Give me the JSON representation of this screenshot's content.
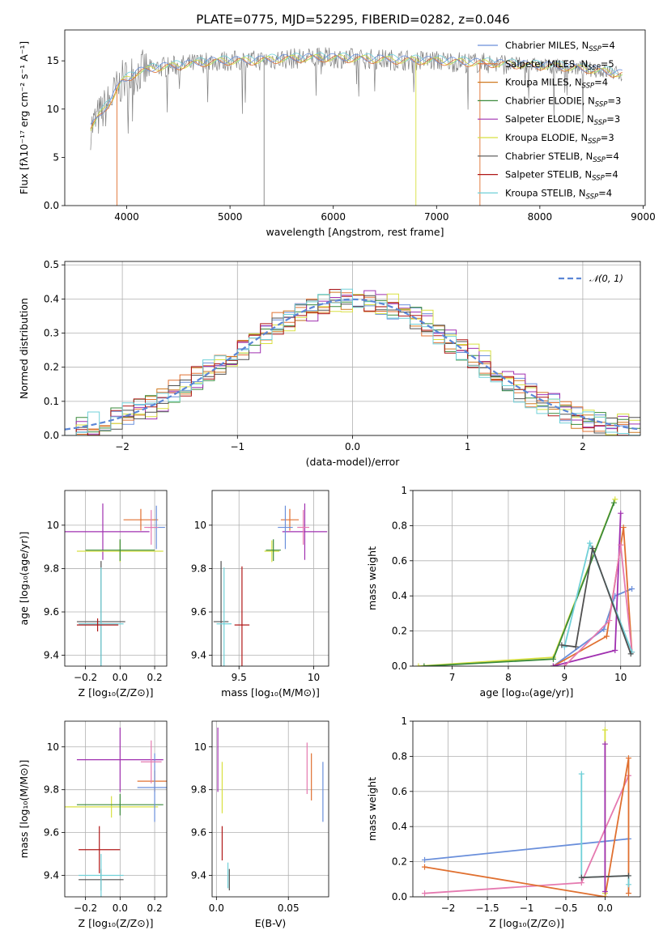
{
  "title": "PLATE=0775, MJD=52295, FIBERID=0282, z=0.046",
  "colors": {
    "Chabrier MILES": "#6a8fdb",
    "Salpeter MILES": "#e07030",
    "Kroupa MILES": "#d07a20",
    "Chabrier ELODIE": "#3a8a3a",
    "Salpeter ELODIE": "#a030b0",
    "Kroupa ELODIE": "#d8e040",
    "Chabrier STELIB": "#505050",
    "Salpeter STELIB": "#b01818",
    "Kroupa STELIB": "#70d0d8",
    "pink": "#e57ab0",
    "lime": "#b8e048",
    "normal_curve": "#5b86d6",
    "spectrum": "#808080"
  },
  "chart_data": [
    {
      "id": "spectrum",
      "type": "line",
      "xlabel": "wavelength [Angstrom, rest frame]",
      "ylabel": "Flux [fλ10⁻¹⁷ erg cm⁻² s⁻¹ A⁻¹]",
      "xlim": [
        3400,
        9020
      ],
      "ylim": [
        0,
        18.2
      ],
      "xticks": [
        4000,
        5000,
        6000,
        7000,
        8000,
        9000
      ],
      "yticks": [
        0,
        5,
        10,
        15
      ],
      "legend_position": "right",
      "legend": [
        {
          "name": "Chabrier MILES",
          "nssp": "4"
        },
        {
          "name": "Salpeter MILES",
          "nssp": "5"
        },
        {
          "name": "Kroupa MILES",
          "nssp": "4"
        },
        {
          "name": "Chabrier ELODIE",
          "nssp": "3"
        },
        {
          "name": "Salpeter ELODIE",
          "nssp": "3"
        },
        {
          "name": "Kroupa ELODIE",
          "nssp": "3"
        },
        {
          "name": "Chabrier STELIB",
          "nssp": "4"
        },
        {
          "name": "Salpeter STELIB",
          "nssp": "4"
        },
        {
          "name": "Kroupa STELIB",
          "nssp": "4"
        }
      ],
      "spectrum_envelope": {
        "x": [
          3650,
          3750,
          3850,
          3950,
          4100,
          4300,
          4500,
          4800,
          5000,
          5200,
          5500,
          5800,
          6000,
          6300,
          6600,
          7000,
          7400,
          7800,
          8200,
          8500,
          8800
        ],
        "y": [
          8.0,
          9.5,
          11.0,
          12.8,
          13.8,
          14.3,
          14.5,
          14.9,
          15.0,
          15.0,
          15.2,
          15.3,
          15.3,
          15.2,
          15.1,
          15.0,
          14.8,
          14.6,
          14.4,
          14.1,
          13.6
        ]
      }
    },
    {
      "id": "residuals",
      "type": "line",
      "xlabel": "(data-model)/error",
      "ylabel": "Normed distribution",
      "xlim": [
        -2.5,
        2.5
      ],
      "ylim": [
        0,
        0.51
      ],
      "xticks": [
        -2,
        -1,
        0,
        1,
        2
      ],
      "yticks": [
        0.0,
        0.1,
        0.2,
        0.3,
        0.4,
        0.5
      ],
      "legend_entry": "𝒩(0, 1)",
      "legend_position": "top-right",
      "grid": true
    },
    {
      "id": "age_vs_Z",
      "type": "scatter",
      "xlabel": "Z [log₁₀(Z/Z⊙)]",
      "ylabel": "age  [log₁₀(age/yr)]",
      "xlim": [
        -0.32,
        0.27
      ],
      "ylim": [
        9.35,
        10.16
      ],
      "xticks": [
        -0.2,
        0.0,
        0.2
      ],
      "yticks": [
        9.4,
        9.6,
        9.8,
        10.0
      ],
      "grid": true,
      "points": [
        {
          "c": "Salpeter ELODIE",
          "x": -0.1,
          "y": 9.97,
          "xe": 0.27,
          "ye": 0.13
        },
        {
          "c": "Kroupa ELODIE",
          "x": 0.0,
          "y": 9.88,
          "xe": 0.25,
          "ye": 0.05
        },
        {
          "c": "Chabrier ELODIE",
          "x": 0.0,
          "y": 9.885,
          "xe": 0.2,
          "ye": 0.05
        },
        {
          "c": "Salpeter MILES",
          "x": 0.12,
          "y": 10.025,
          "xe": 0.1,
          "ye": 0.05
        },
        {
          "c": "Chabrier MILES",
          "x": 0.21,
          "y": 9.99,
          "xe": 0.05,
          "ye": 0.1
        },
        {
          "c": "pink",
          "x": 0.18,
          "y": 9.99,
          "xe": 0.04,
          "ye": 0.08
        },
        {
          "c": "Chabrier STELIB",
          "x": -0.11,
          "y": 9.555,
          "xe": 0.14,
          "ye": 0.28
        },
        {
          "c": "Kroupa STELIB",
          "x": -0.11,
          "y": 9.545,
          "xe": 0.13,
          "ye": 0.26
        },
        {
          "c": "Salpeter STELIB",
          "x": -0.13,
          "y": 9.54,
          "xe": 0.12,
          "ye": 0.03
        }
      ]
    },
    {
      "id": "age_vs_mass",
      "type": "scatter",
      "xlabel": "mass [log₁₀(M/M⊙)]",
      "ylabel": "",
      "xlim": [
        9.32,
        10.1
      ],
      "ylim": [
        9.35,
        10.16
      ],
      "xticks": [
        9.5,
        10.0
      ],
      "yticks": [
        9.4,
        9.6,
        9.8,
        10.0
      ],
      "grid": true,
      "points": [
        {
          "c": "Salpeter ELODIE",
          "x": 9.94,
          "y": 9.97,
          "xe": 0.15,
          "ye": 0.13
        },
        {
          "c": "Kroupa ELODIE",
          "x": 9.72,
          "y": 9.88,
          "xe": 0.05,
          "ye": 0.05
        },
        {
          "c": "Chabrier ELODIE",
          "x": 9.73,
          "y": 9.885,
          "xe": 0.05,
          "ye": 0.05
        },
        {
          "c": "Salpeter MILES",
          "x": 9.84,
          "y": 10.025,
          "xe": 0.06,
          "ye": 0.05
        },
        {
          "c": "Chabrier MILES",
          "x": 9.81,
          "y": 9.99,
          "xe": 0.05,
          "ye": 0.1
        },
        {
          "c": "pink",
          "x": 9.93,
          "y": 9.99,
          "xe": 0.04,
          "ye": 0.08
        },
        {
          "c": "Chabrier STELIB",
          "x": 9.38,
          "y": 9.555,
          "xe": 0.05,
          "ye": 0.28
        },
        {
          "c": "Kroupa STELIB",
          "x": 9.4,
          "y": 9.545,
          "xe": 0.05,
          "ye": 0.26
        },
        {
          "c": "Salpeter STELIB",
          "x": 9.52,
          "y": 9.54,
          "xe": 0.05,
          "ye": 0.27
        }
      ]
    },
    {
      "id": "massweight_vs_age",
      "type": "line",
      "xlabel": "age  [log₁₀(age/yr)]",
      "ylabel": "mass weight",
      "xlim": [
        6.3,
        10.35
      ],
      "ylim": [
        0,
        1.0
      ],
      "xticks": [
        7,
        8,
        9,
        10
      ],
      "yticks": [
        0.0,
        0.2,
        0.4,
        0.6,
        0.8,
        1.0
      ],
      "grid": true,
      "series": [
        {
          "c": "Chabrier MILES",
          "x": [
            8.8,
            9.7,
            9.9,
            10.2
          ],
          "y": [
            0.0,
            0.21,
            0.4,
            0.44
          ]
        },
        {
          "c": "Salpeter MILES",
          "x": [
            8.8,
            9.75,
            10.05,
            10.2
          ],
          "y": [
            0.0,
            0.17,
            0.79,
            0.08
          ]
        },
        {
          "c": "Salpeter ELODIE",
          "x": [
            8.8,
            9.9,
            10.0
          ],
          "y": [
            0.0,
            0.09,
            0.87
          ]
        },
        {
          "c": "pink",
          "x": [
            9.0,
            9.8,
            10.0,
            10.2
          ],
          "y": [
            0.0,
            0.26,
            0.69,
            0.08
          ]
        },
        {
          "c": "Kroupa ELODIE",
          "x": [
            6.4,
            8.8,
            9.9
          ],
          "y": [
            0.0,
            0.05,
            0.95
          ]
        },
        {
          "c": "Chabrier ELODIE",
          "x": [
            6.5,
            8.8,
            9.88
          ],
          "y": [
            0.0,
            0.04,
            0.93
          ]
        },
        {
          "c": "Kroupa STELIB",
          "x": [
            9.0,
            9.45,
            10.2
          ],
          "y": [
            0.11,
            0.7,
            0.08
          ]
        },
        {
          "c": "Chabrier STELIB",
          "x": [
            8.95,
            9.2,
            9.5,
            10.18
          ],
          "y": [
            0.12,
            0.11,
            0.67,
            0.07
          ]
        }
      ]
    },
    {
      "id": "mass_vs_Z",
      "type": "scatter",
      "xlabel": "Z [log₁₀(Z/Z⊙)]",
      "ylabel": "mass [log₁₀(M/M⊙)]",
      "xlim": [
        -0.32,
        0.27
      ],
      "ylim": [
        9.3,
        10.12
      ],
      "xticks": [
        -0.2,
        0.0,
        0.2
      ],
      "yticks": [
        9.4,
        9.6,
        9.8,
        10.0
      ],
      "grid": true,
      "points": [
        {
          "c": "Salpeter ELODIE",
          "x": 0.0,
          "y": 9.94,
          "xe": 0.25,
          "ye": 0.15
        },
        {
          "c": "Kroupa ELODIE",
          "x": -0.05,
          "y": 9.72,
          "xe": 0.27,
          "ye": 0.05
        },
        {
          "c": "Chabrier ELODIE",
          "x": 0.0,
          "y": 9.73,
          "xe": 0.25,
          "ye": 0.05
        },
        {
          "c": "Salpeter MILES",
          "x": 0.2,
          "y": 9.84,
          "xe": 0.1,
          "ye": 0.05
        },
        {
          "c": "Chabrier MILES",
          "x": 0.2,
          "y": 9.81,
          "xe": 0.1,
          "ye": 0.16
        },
        {
          "c": "pink",
          "x": 0.18,
          "y": 9.93,
          "xe": 0.06,
          "ye": 0.1
        },
        {
          "c": "Salpeter STELIB",
          "x": -0.12,
          "y": 9.52,
          "xe": 0.12,
          "ye": 0.11
        },
        {
          "c": "Chabrier STELIB",
          "x": -0.11,
          "y": 9.38,
          "xe": 0.13,
          "ye": 0.05
        },
        {
          "c": "Kroupa STELIB",
          "x": -0.11,
          "y": 9.4,
          "xe": 0.13,
          "ye": 0.1
        }
      ]
    },
    {
      "id": "mass_vs_EBV",
      "type": "scatter",
      "xlabel": "E(B-V)",
      "ylabel": "",
      "xlim": [
        -0.003,
        0.078
      ],
      "ylim": [
        9.3,
        10.12
      ],
      "xticks": [
        0.0,
        0.05
      ],
      "yticks": [
        9.4,
        9.6,
        9.8,
        10.0
      ],
      "grid": true,
      "points": [
        {
          "c": "Salpeter ELODIE",
          "x": 0.001,
          "y": 9.94,
          "xe": 0.0,
          "ye": 0.15
        },
        {
          "c": "Kroupa ELODIE",
          "x": 0.004,
          "y": 9.81,
          "xe": 0.0,
          "ye": 0.12
        },
        {
          "c": "Salpeter STELIB",
          "x": 0.004,
          "y": 9.55,
          "xe": 0.0,
          "ye": 0.08
        },
        {
          "c": "Kroupa STELIB",
          "x": 0.008,
          "y": 9.4,
          "xe": 0.0,
          "ye": 0.06
        },
        {
          "c": "Chabrier STELIB",
          "x": 0.009,
          "y": 9.38,
          "xe": 0.0,
          "ye": 0.05
        },
        {
          "c": "pink",
          "x": 0.063,
          "y": 9.9,
          "xe": 0.0,
          "ye": 0.12
        },
        {
          "c": "Salpeter MILES",
          "x": 0.066,
          "y": 9.86,
          "xe": 0.0,
          "ye": 0.11
        },
        {
          "c": "Chabrier MILES",
          "x": 0.074,
          "y": 9.79,
          "xe": 0.0,
          "ye": 0.14
        }
      ]
    },
    {
      "id": "massweight_vs_Z",
      "type": "line",
      "xlabel": "Z [log₁₀(Z/Z⊙)]",
      "ylabel": "mass weight",
      "xlim": [
        -2.45,
        0.45
      ],
      "ylim": [
        0,
        1.0
      ],
      "xticks": [
        -2.0,
        -1.5,
        -1.0,
        -0.5,
        0.0
      ],
      "yticks": [
        0.0,
        0.2,
        0.4,
        0.6,
        0.8,
        1.0
      ],
      "grid": true,
      "series": [
        {
          "c": "Chabrier MILES",
          "x": [
            -2.3,
            0.3
          ],
          "y": [
            0.21,
            0.33
          ]
        },
        {
          "c": "pink",
          "x": [
            -2.3,
            -0.3,
            0.3
          ],
          "y": [
            0.02,
            0.08,
            0.69
          ]
        },
        {
          "c": "Salpeter MILES",
          "x": [
            -2.3,
            0.0,
            0.3,
            0.3
          ],
          "y": [
            0.17,
            0.0,
            0.79,
            0.02
          ]
        },
        {
          "c": "Kroupa STELIB",
          "x": [
            -0.3,
            -0.3,
            0.3,
            0.3
          ],
          "y": [
            0.7,
            0.11,
            0.12,
            0.07
          ]
        },
        {
          "c": "Chabrier STELIB",
          "x": [
            -0.3,
            0.3
          ],
          "y": [
            0.11,
            0.12
          ]
        },
        {
          "c": "Kroupa ELODIE",
          "x": [
            0.0,
            0.0
          ],
          "y": [
            0.95,
            0.02
          ]
        },
        {
          "c": "Salpeter ELODIE",
          "x": [
            0.0,
            0.0
          ],
          "y": [
            0.87,
            0.03
          ]
        }
      ]
    }
  ]
}
